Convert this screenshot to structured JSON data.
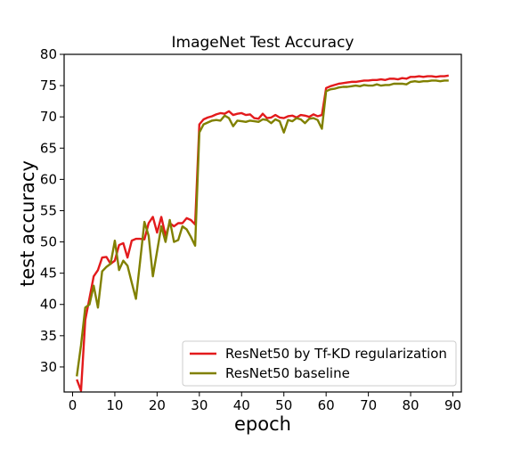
{
  "chart_data": {
    "type": "line",
    "title": "ImageNet Test Accuracy",
    "xlabel": "epoch",
    "ylabel": "test accuracy",
    "xlim": [
      -2,
      92
    ],
    "ylim": [
      26,
      80
    ],
    "xticks": [
      0,
      10,
      20,
      30,
      40,
      50,
      60,
      70,
      80,
      90
    ],
    "yticks": [
      30,
      35,
      40,
      45,
      50,
      55,
      60,
      65,
      70,
      75,
      80
    ],
    "grid": false,
    "legend_position": "lower-right",
    "x": [
      1,
      2,
      3,
      4,
      5,
      6,
      7,
      8,
      9,
      10,
      11,
      12,
      13,
      14,
      15,
      16,
      17,
      18,
      19,
      20,
      21,
      22,
      23,
      24,
      25,
      26,
      27,
      28,
      29,
      30,
      31,
      32,
      33,
      34,
      35,
      36,
      37,
      38,
      39,
      40,
      41,
      42,
      43,
      44,
      45,
      46,
      47,
      48,
      49,
      50,
      51,
      52,
      53,
      54,
      55,
      56,
      57,
      58,
      59,
      60,
      61,
      62,
      63,
      64,
      65,
      66,
      67,
      68,
      69,
      70,
      71,
      72,
      73,
      74,
      75,
      76,
      77,
      78,
      79,
      80,
      81,
      82,
      83,
      84,
      85,
      86,
      87,
      88,
      89
    ],
    "series": [
      {
        "name": "ResNet50 by Tf-KD regularization",
        "color": "#e31a1c",
        "values": [
          28.0,
          26.2,
          37.5,
          41.0,
          44.5,
          45.5,
          47.5,
          47.6,
          46.5,
          47.0,
          49.5,
          49.8,
          47.5,
          50.2,
          50.5,
          50.5,
          50.4,
          53.0,
          54.0,
          51.5,
          54.0,
          51.0,
          53.0,
          52.5,
          53.0,
          53.0,
          53.8,
          53.5,
          52.8,
          68.8,
          69.6,
          69.9,
          70.1,
          70.4,
          70.6,
          70.5,
          70.9,
          70.3,
          70.5,
          70.6,
          70.3,
          70.4,
          69.8,
          69.7,
          70.5,
          69.8,
          69.9,
          70.3,
          69.9,
          69.8,
          70.1,
          70.2,
          69.9,
          70.3,
          70.2,
          70.0,
          70.4,
          70.1,
          70.3,
          74.6,
          74.9,
          75.1,
          75.3,
          75.4,
          75.5,
          75.6,
          75.6,
          75.7,
          75.8,
          75.8,
          75.9,
          75.9,
          76.0,
          75.9,
          76.1,
          76.1,
          76.0,
          76.2,
          76.1,
          76.4,
          76.4,
          76.5,
          76.4,
          76.5,
          76.5,
          76.4,
          76.5,
          76.5,
          76.6
        ]
      },
      {
        "name": "ResNet50 baseline",
        "color": "#808000",
        "values": [
          28.5,
          33.5,
          39.5,
          40.0,
          43.0,
          39.5,
          45.3,
          46.0,
          46.5,
          50.2,
          45.5,
          47.0,
          46.2,
          43.5,
          40.9,
          47.0,
          53.2,
          51.0,
          44.5,
          48.5,
          52.5,
          50.0,
          53.5,
          50.0,
          50.3,
          52.5,
          52.0,
          50.8,
          49.4,
          67.5,
          68.8,
          69.1,
          69.4,
          69.5,
          69.4,
          70.2,
          69.8,
          68.5,
          69.4,
          69.3,
          69.2,
          69.4,
          69.3,
          69.2,
          69.6,
          69.5,
          69.0,
          69.6,
          69.3,
          67.5,
          69.5,
          69.3,
          69.8,
          69.6,
          69.0,
          69.7,
          69.8,
          69.5,
          68.1,
          74.1,
          74.4,
          74.5,
          74.7,
          74.8,
          74.8,
          74.9,
          75.0,
          74.9,
          75.1,
          75.0,
          75.0,
          75.2,
          75.0,
          75.1,
          75.1,
          75.3,
          75.3,
          75.3,
          75.2,
          75.6,
          75.7,
          75.6,
          75.7,
          75.7,
          75.8,
          75.8,
          75.7,
          75.8,
          75.8
        ]
      }
    ]
  }
}
